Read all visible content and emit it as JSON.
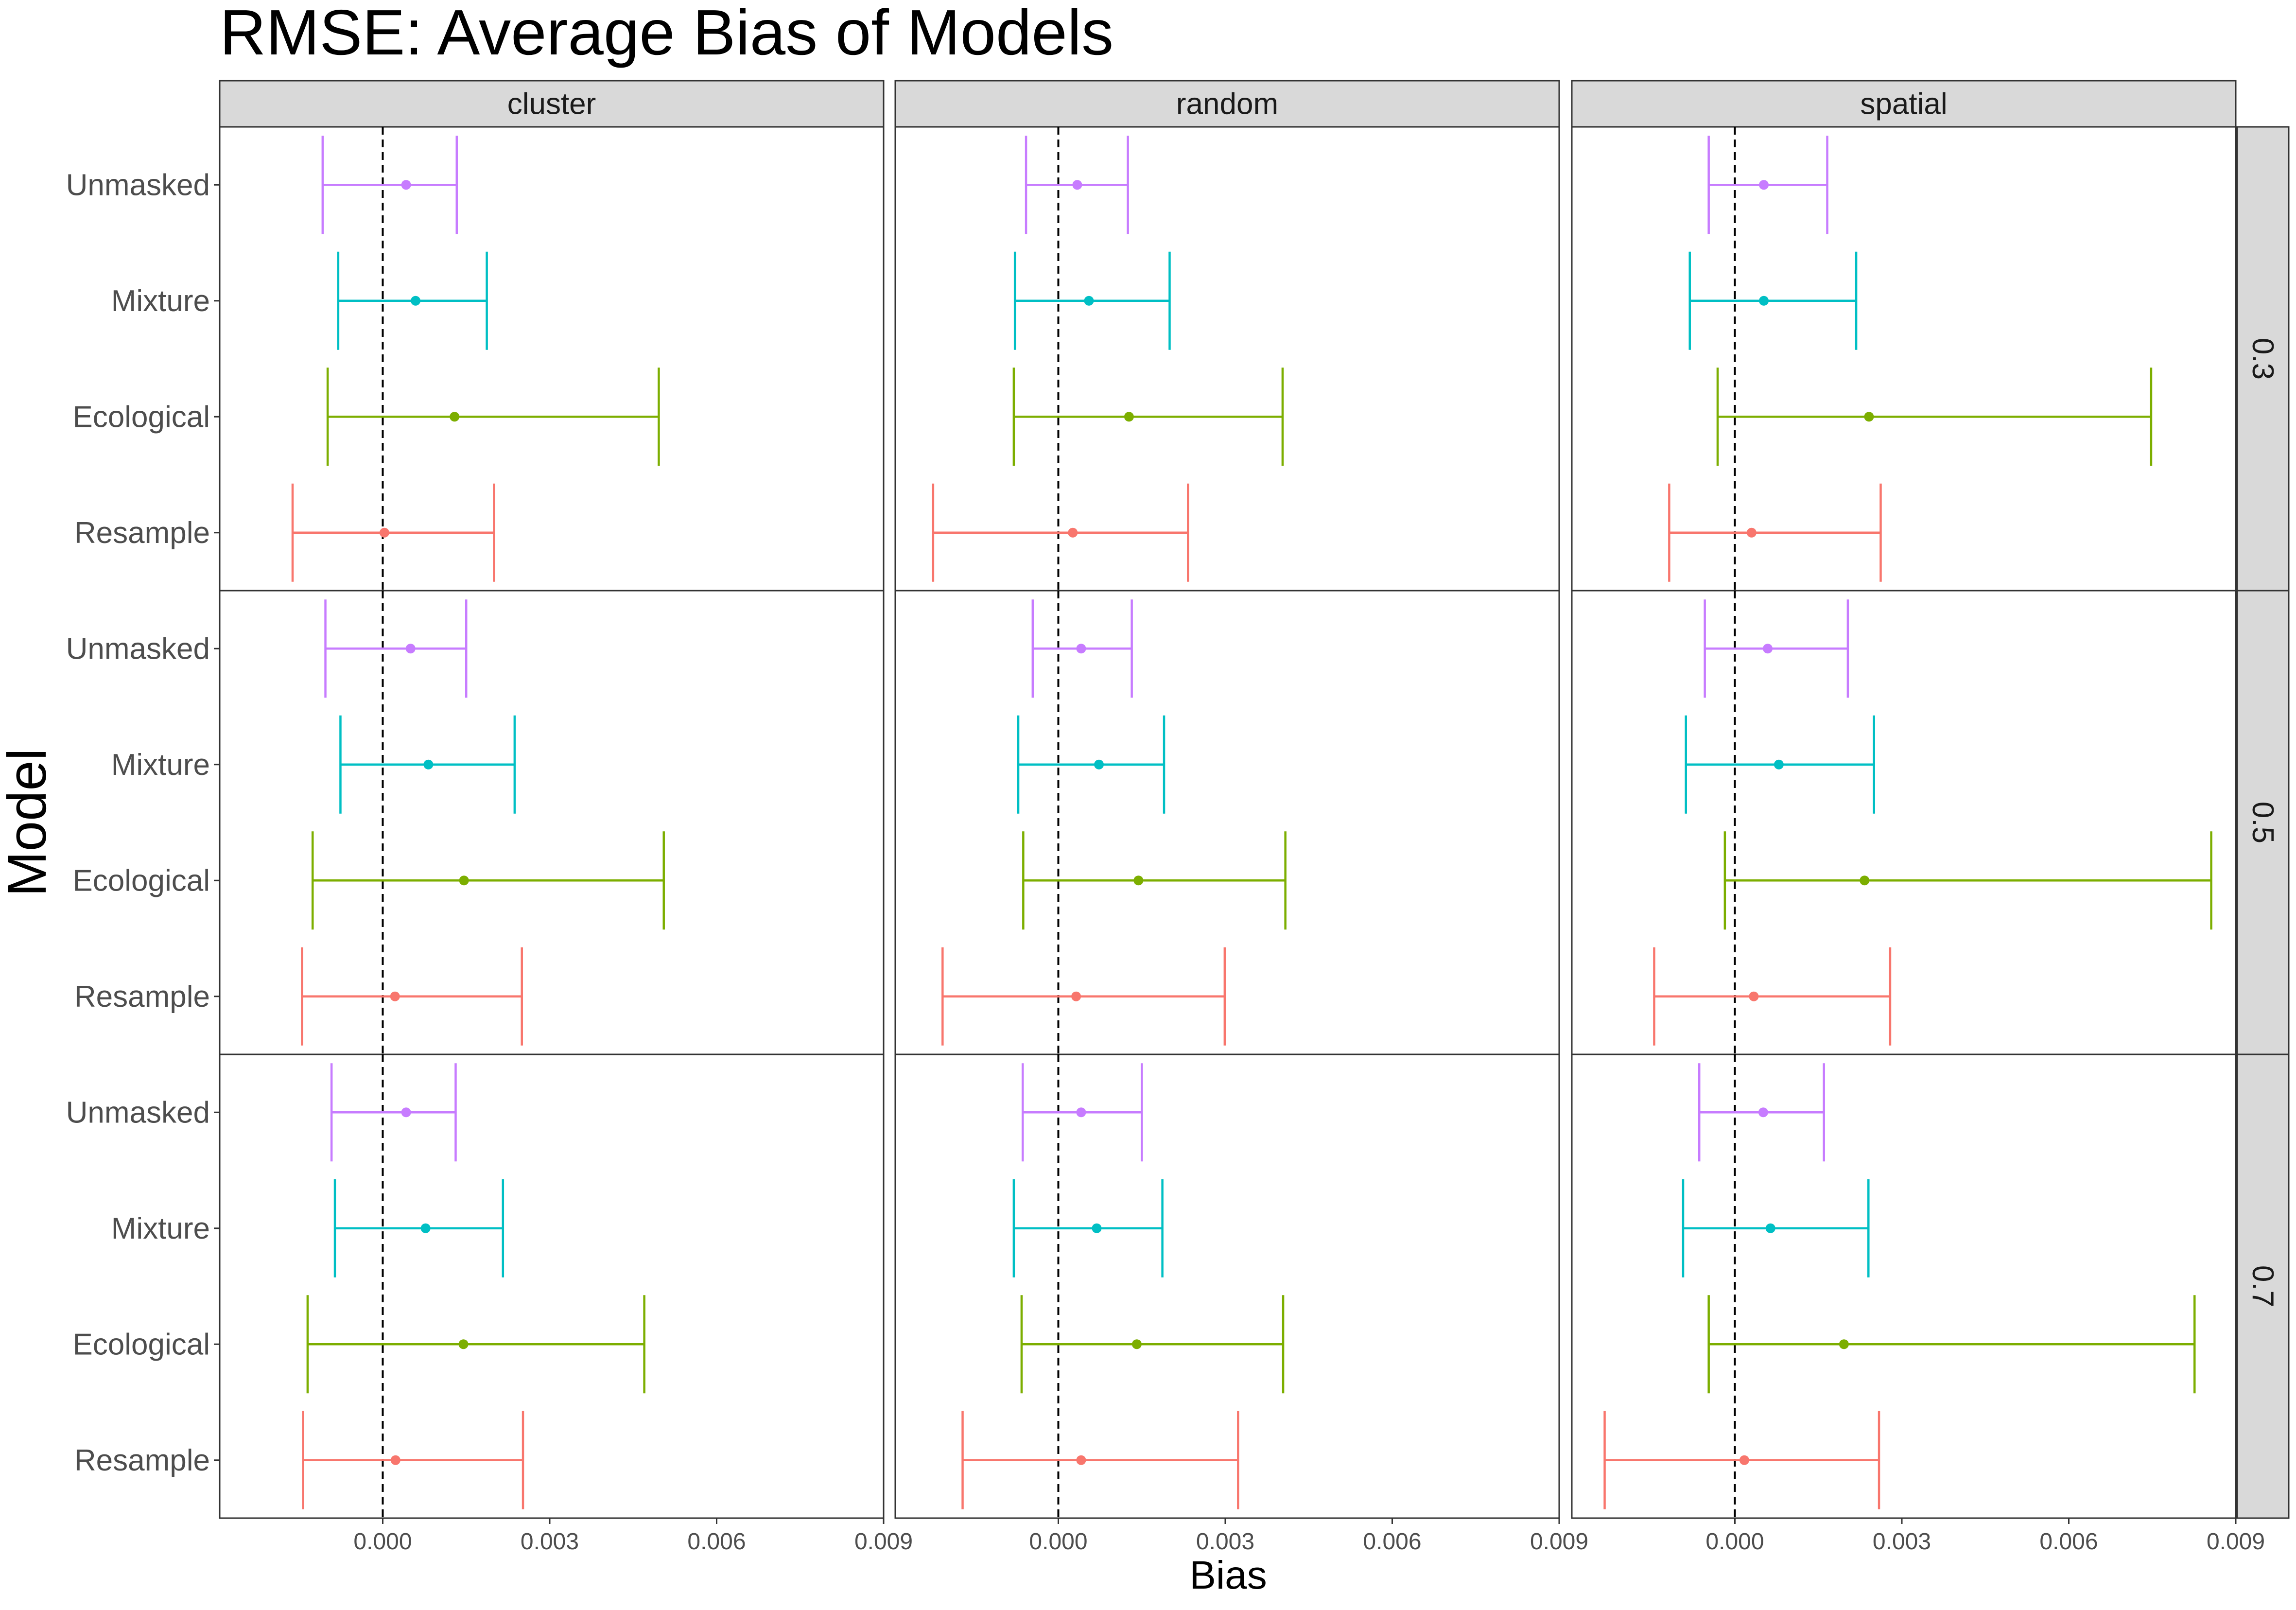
{
  "chart_data": {
    "type": "errorbar",
    "title": "RMSE: Average Bias of Models",
    "xlabel": "Bias",
    "ylabel": "Model",
    "xlim": [
      -0.00293,
      0.009
    ],
    "xticks": [
      0,
      0.003,
      0.006,
      0.009
    ],
    "xtick_labels": [
      "0.000",
      "0.003",
      "0.006",
      "0.009"
    ],
    "reference_line": {
      "x": 0,
      "style": "dashed",
      "color": "#000000"
    },
    "models": [
      "Unmasked",
      "Mixture",
      "Ecological",
      "Resample"
    ],
    "colors": {
      "Unmasked": "#C77CFF",
      "Mixture": "#00BFC4",
      "Ecological": "#7CAE00",
      "Resample": "#F8766D"
    },
    "col_facets": [
      "cluster",
      "random",
      "spatial"
    ],
    "row_facets": [
      "0.3",
      "0.5",
      "0.7"
    ],
    "panels": [
      {
        "col": "cluster",
        "row": "0.3",
        "points": [
          {
            "model": "Unmasked",
            "mean": 0.00042,
            "lower": -0.00108,
            "upper": 0.00133
          },
          {
            "model": "Mixture",
            "mean": 0.00059,
            "lower": -0.0008,
            "upper": 0.00187
          },
          {
            "model": "Ecological",
            "mean": 0.00129,
            "lower": -0.00099,
            "upper": 0.00496
          },
          {
            "model": "Resample",
            "mean": 3e-05,
            "lower": -0.00162,
            "upper": 0.002
          }
        ]
      },
      {
        "col": "random",
        "row": "0.3",
        "points": [
          {
            "model": "Unmasked",
            "mean": 0.00034,
            "lower": -0.00058,
            "upper": 0.00125
          },
          {
            "model": "Mixture",
            "mean": 0.00055,
            "lower": -0.00078,
            "upper": 0.002
          },
          {
            "model": "Ecological",
            "mean": 0.00127,
            "lower": -0.0008,
            "upper": 0.00403
          },
          {
            "model": "Resample",
            "mean": 0.00026,
            "lower": -0.00225,
            "upper": 0.00233
          }
        ]
      },
      {
        "col": "spatial",
        "row": "0.3",
        "points": [
          {
            "model": "Unmasked",
            "mean": 0.00052,
            "lower": -0.00047,
            "upper": 0.00166
          },
          {
            "model": "Mixture",
            "mean": 0.00052,
            "lower": -0.00081,
            "upper": 0.00218
          },
          {
            "model": "Ecological",
            "mean": 0.00241,
            "lower": -0.00031,
            "upper": 0.00748
          },
          {
            "model": "Resample",
            "mean": 0.0003,
            "lower": -0.00118,
            "upper": 0.00262
          }
        ]
      },
      {
        "col": "cluster",
        "row": "0.5",
        "points": [
          {
            "model": "Unmasked",
            "mean": 0.0005,
            "lower": -0.00103,
            "upper": 0.0015
          },
          {
            "model": "Mixture",
            "mean": 0.00082,
            "lower": -0.00076,
            "upper": 0.00237
          },
          {
            "model": "Ecological",
            "mean": 0.00146,
            "lower": -0.00126,
            "upper": 0.00505
          },
          {
            "model": "Resample",
            "mean": 0.00022,
            "lower": -0.00145,
            "upper": 0.0025
          }
        ]
      },
      {
        "col": "random",
        "row": "0.5",
        "points": [
          {
            "model": "Unmasked",
            "mean": 0.00041,
            "lower": -0.00046,
            "upper": 0.00132
          },
          {
            "model": "Mixture",
            "mean": 0.00073,
            "lower": -0.00072,
            "upper": 0.0019
          },
          {
            "model": "Ecological",
            "mean": 0.00144,
            "lower": -0.00063,
            "upper": 0.00408
          },
          {
            "model": "Resample",
            "mean": 0.00032,
            "lower": -0.00208,
            "upper": 0.00299
          }
        ]
      },
      {
        "col": "spatial",
        "row": "0.5",
        "points": [
          {
            "model": "Unmasked",
            "mean": 0.00059,
            "lower": -0.00054,
            "upper": 0.00203
          },
          {
            "model": "Mixture",
            "mean": 0.00079,
            "lower": -0.00088,
            "upper": 0.0025
          },
          {
            "model": "Ecological",
            "mean": 0.00233,
            "lower": -0.00018,
            "upper": 0.00856
          },
          {
            "model": "Resample",
            "mean": 0.00034,
            "lower": -0.00145,
            "upper": 0.00279
          }
        ]
      },
      {
        "col": "cluster",
        "row": "0.7",
        "points": [
          {
            "model": "Unmasked",
            "mean": 0.00042,
            "lower": -0.00092,
            "upper": 0.00131
          },
          {
            "model": "Mixture",
            "mean": 0.00077,
            "lower": -0.00086,
            "upper": 0.00216
          },
          {
            "model": "Ecological",
            "mean": 0.00145,
            "lower": -0.00135,
            "upper": 0.0047
          },
          {
            "model": "Resample",
            "mean": 0.00023,
            "lower": -0.00143,
            "upper": 0.00252
          }
        ]
      },
      {
        "col": "random",
        "row": "0.7",
        "points": [
          {
            "model": "Unmasked",
            "mean": 0.00041,
            "lower": -0.00064,
            "upper": 0.0015
          },
          {
            "model": "Mixture",
            "mean": 0.00069,
            "lower": -0.0008,
            "upper": 0.00187
          },
          {
            "model": "Ecological",
            "mean": 0.00141,
            "lower": -0.00066,
            "upper": 0.00404
          },
          {
            "model": "Resample",
            "mean": 0.00041,
            "lower": -0.00172,
            "upper": 0.00323
          }
        ]
      },
      {
        "col": "spatial",
        "row": "0.7",
        "points": [
          {
            "model": "Unmasked",
            "mean": 0.00051,
            "lower": -0.00064,
            "upper": 0.0016
          },
          {
            "model": "Mixture",
            "mean": 0.00064,
            "lower": -0.00093,
            "upper": 0.0024
          },
          {
            "model": "Ecological",
            "mean": 0.00196,
            "lower": -0.00047,
            "upper": 0.00826
          },
          {
            "model": "Resample",
            "mean": 0.00017,
            "lower": -0.00234,
            "upper": 0.00259
          }
        ]
      }
    ]
  }
}
